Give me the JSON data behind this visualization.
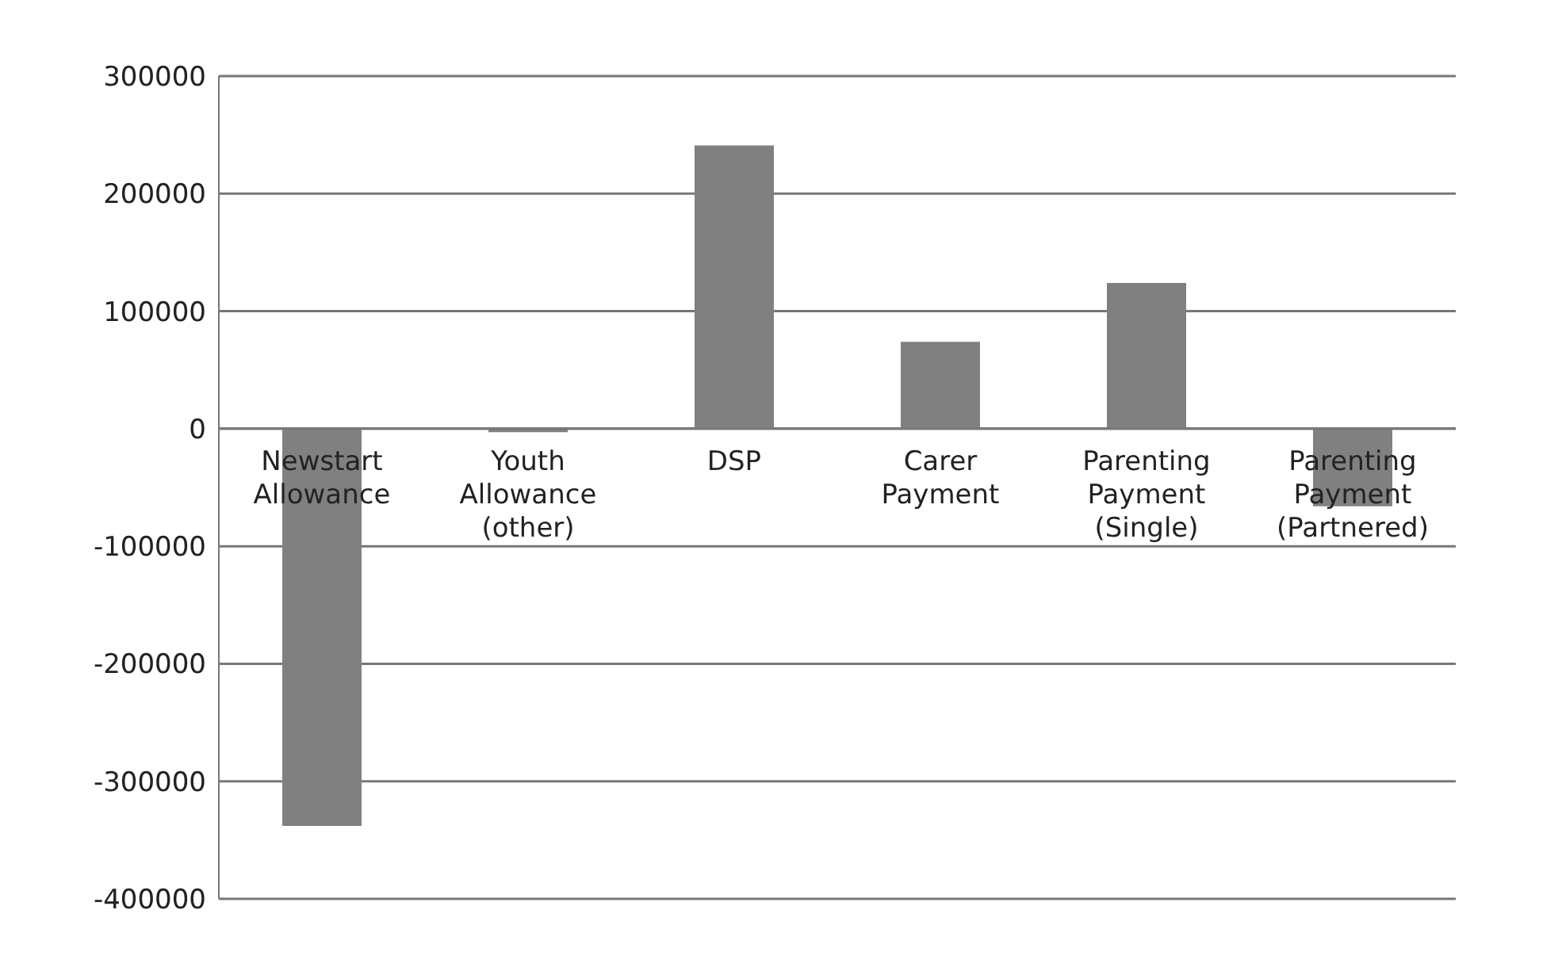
{
  "chart_data": {
    "type": "bar",
    "categories": [
      "Newstart Allowance",
      "Youth Allowance (other)",
      "DSP",
      "Carer Payment",
      "Parenting Payment (Single)",
      "Parenting Payment (Partnered)"
    ],
    "values": [
      -338000,
      -3000,
      241000,
      74000,
      124000,
      -66000
    ],
    "color": "#808080",
    "ylim": [
      -400000,
      300000
    ],
    "yticks": [
      -400000,
      -300000,
      -200000,
      -100000,
      0,
      100000,
      200000,
      300000
    ],
    "grid": "y",
    "legend": false
  }
}
